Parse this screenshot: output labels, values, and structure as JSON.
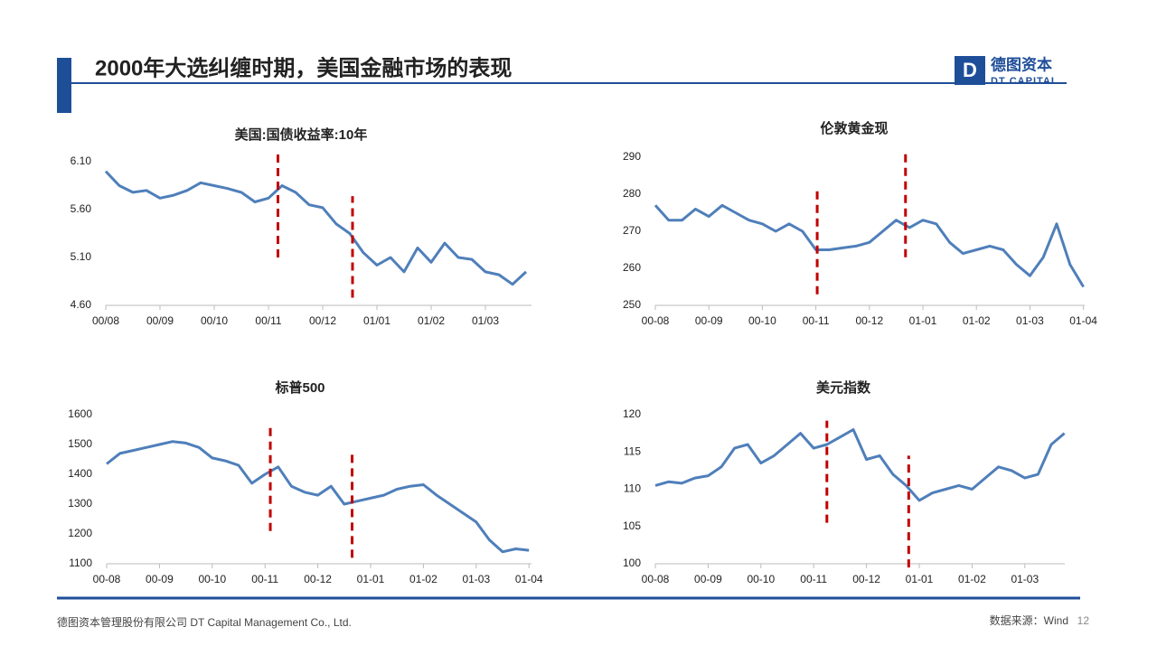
{
  "header": {
    "title": "2000年大选纠缠时期，美国金融市场的表现",
    "logo": "德图资本",
    "logo_en": "DT CAPITAL"
  },
  "footer": {
    "company": "德图资本管理股份有限公司  DT Capital Management Co., Ltd.",
    "source": "数据来源：Wind",
    "page": "12"
  },
  "chart_data": [
    {
      "type": "line",
      "title": "美国:国债收益率:10年",
      "color": "#4f7fba",
      "categories": [
        "00/08",
        null,
        null,
        null,
        "00/09",
        null,
        null,
        null,
        "00/10",
        null,
        null,
        null,
        "00/11",
        null,
        null,
        null,
        "00/12",
        null,
        null,
        null,
        "01/01",
        null,
        null,
        null,
        "01/02",
        null,
        null,
        null,
        "01/03",
        null,
        null,
        null
      ],
      "values": [
        6.0,
        5.85,
        5.78,
        5.8,
        5.72,
        5.75,
        5.8,
        5.88,
        5.85,
        5.82,
        5.78,
        5.68,
        5.72,
        5.85,
        5.78,
        5.65,
        5.62,
        5.45,
        5.35,
        5.15,
        5.02,
        5.1,
        4.95,
        5.2,
        5.05,
        5.25,
        5.1,
        5.08,
        4.95,
        4.92,
        4.82,
        4.95
      ],
      "ylim": [
        4.6,
        6.1
      ],
      "yticks": [
        {
          "value": 4.6,
          "label": "4.60"
        },
        {
          "value": 5.1,
          "label": "5.10"
        },
        {
          "value": 5.6,
          "label": "5.60"
        },
        {
          "value": 6.1,
          "label": "6.10"
        }
      ],
      "markers": [
        {
          "x": 12.7,
          "from": 5.1,
          "to": 6.18
        },
        {
          "x": 18.2,
          "from": 4.68,
          "to": 5.74
        }
      ],
      "marker_color": "#c00000"
    },
    {
      "type": "line",
      "title": "伦敦黄金现",
      "color": "#4f7fba",
      "categories": [
        "00-08",
        null,
        null,
        null,
        "00-09",
        null,
        null,
        null,
        "00-10",
        null,
        null,
        null,
        "00-11",
        null,
        null,
        null,
        "00-12",
        null,
        null,
        null,
        "01-01",
        null,
        null,
        null,
        "01-02",
        null,
        null,
        null,
        "01-03",
        null,
        null,
        null,
        "01-04"
      ],
      "values": [
        277,
        273,
        273,
        276,
        274,
        277,
        275,
        273,
        272,
        270,
        272,
        270,
        265,
        265,
        265.5,
        266,
        267,
        270,
        273,
        271,
        273,
        272,
        267,
        264,
        265,
        266,
        265,
        261,
        258,
        263,
        272,
        261,
        255
      ],
      "ylim": [
        250,
        290
      ],
      "yticks": [
        250,
        260,
        270,
        280,
        290
      ],
      "markers": [
        {
          "x": 12.1,
          "from": 253,
          "to": 282
        },
        {
          "x": 18.7,
          "from": 263,
          "to": 291
        }
      ],
      "marker_color": "#c00000"
    },
    {
      "type": "line",
      "title": "标普500",
      "color": "#4f7fba",
      "categories": [
        "00-08",
        null,
        null,
        null,
        "00-09",
        null,
        null,
        null,
        "00-10",
        null,
        null,
        null,
        "00-11",
        null,
        null,
        null,
        "00-12",
        null,
        null,
        null,
        "01-01",
        null,
        null,
        null,
        "01-02",
        null,
        null,
        null,
        "01-03",
        null,
        null,
        null,
        "01-04"
      ],
      "values": [
        1435,
        1470,
        1480,
        1490,
        1500,
        1510,
        1505,
        1490,
        1455,
        1445,
        1430,
        1370,
        1400,
        1425,
        1360,
        1340,
        1330,
        1360,
        1300,
        1310,
        1320,
        1330,
        1350,
        1360,
        1365,
        1330,
        1300,
        1270,
        1240,
        1180,
        1140,
        1150,
        1145
      ],
      "ylim": [
        1100,
        1600
      ],
      "yticks": [
        1100,
        1200,
        1300,
        1400,
        1500,
        1600
      ],
      "markers": [
        {
          "x": 12.4,
          "from": 1210,
          "to": 1560
        },
        {
          "x": 18.6,
          "from": 1120,
          "to": 1470
        }
      ],
      "marker_color": "#c00000"
    },
    {
      "type": "line",
      "title": "美元指数",
      "color": "#4f7fba",
      "categories": [
        "00-08",
        null,
        null,
        null,
        "00-09",
        null,
        null,
        null,
        "00-10",
        null,
        null,
        null,
        "00-11",
        null,
        null,
        null,
        "00-12",
        null,
        null,
        null,
        "01-01",
        null,
        null,
        null,
        "01-02",
        null,
        null,
        null,
        "01-03",
        null,
        null,
        null
      ],
      "values": [
        110.5,
        111,
        110.8,
        111.5,
        111.8,
        113,
        115.5,
        116,
        113.5,
        114.5,
        116,
        117.5,
        115.5,
        116,
        117,
        118,
        114,
        114.5,
        112,
        110.5,
        108.5,
        109.5,
        110,
        110.5,
        110,
        111.5,
        113,
        112.5,
        111.5,
        112,
        116,
        117.5
      ],
      "ylim": [
        100,
        120
      ],
      "yticks": [
        100,
        105,
        110,
        115,
        120
      ],
      "markers": [
        {
          "x": 13,
          "from": 105.5,
          "to": 119.2
        },
        {
          "x": 19.2,
          "from": 99.5,
          "to": 114.5
        }
      ],
      "marker_color": "#c00000"
    }
  ]
}
